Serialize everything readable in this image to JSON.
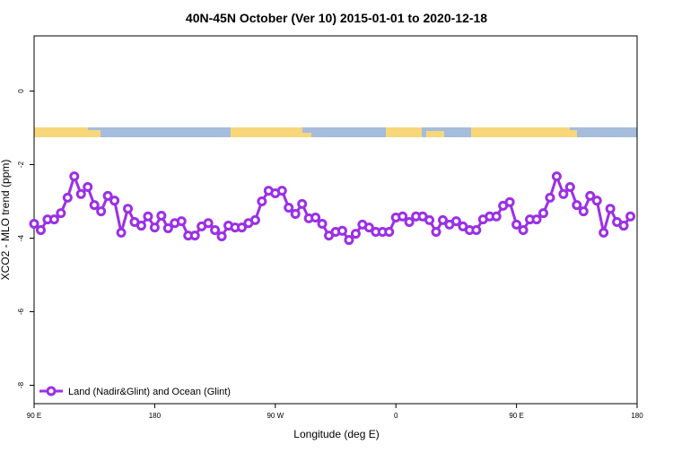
{
  "chart_data": {
    "type": "line",
    "title": "40N-45N October (Ver 10)   2015-01-01 to 2020-12-18",
    "x_label": "Longitude (deg E)",
    "y_label": "XCO2 - MLO trend (ppm)",
    "xlim": [
      90,
      540
    ],
    "ylim": [
      -8.5,
      1.5
    ],
    "xticks": [
      {
        "value": 90,
        "label": "90 E"
      },
      180,
      {
        "value": 270,
        "label": "90 W"
      },
      {
        "value": 360,
        "label": "0"
      },
      {
        "value": 450,
        "label": "90 E"
      },
      {
        "value": 540,
        "label": "180"
      }
    ],
    "yticks": [
      0,
      -2,
      -4,
      -6,
      -8
    ],
    "legend": "bottom-left",
    "x": [
      90,
      95,
      100,
      105,
      110,
      115,
      120,
      125,
      130,
      135,
      140,
      145,
      150,
      155,
      160,
      165,
      170,
      175,
      180,
      185,
      190,
      195,
      200,
      205,
      210,
      215,
      220,
      225,
      230,
      235,
      240,
      245,
      250,
      255,
      260,
      265,
      270,
      275,
      280,
      285,
      290,
      295,
      300,
      305,
      310,
      315,
      320,
      325,
      330,
      335,
      340,
      345,
      350,
      355,
      360,
      365,
      370,
      375,
      380,
      385,
      390,
      395,
      400,
      405,
      410,
      415,
      420,
      425,
      430,
      435,
      440,
      445,
      450,
      455,
      460,
      465,
      470,
      475,
      480,
      485,
      490,
      495,
      500,
      505,
      510,
      515,
      520,
      525,
      530,
      535
    ],
    "series": [
      {
        "name": "Land (Nadir&Glint) and Ocean (Glint)",
        "color": "#9b30e6",
        "values": [
          -3.61,
          -3.78,
          -3.49,
          -3.49,
          -3.32,
          -2.9,
          -2.32,
          -2.8,
          -2.61,
          -3.1,
          -3.27,
          -2.85,
          -2.98,
          -3.85,
          -3.2,
          -3.56,
          -3.66,
          -3.41,
          -3.71,
          -3.39,
          -3.73,
          -3.59,
          -3.54,
          -3.93,
          -3.93,
          -3.68,
          -3.59,
          -3.78,
          -3.95,
          -3.66,
          -3.71,
          -3.71,
          -3.59,
          -3.51,
          -3.0,
          -2.71,
          -2.78,
          -2.71,
          -3.17,
          -3.34,
          -3.07,
          -3.46,
          -3.44,
          -3.61,
          -3.93,
          -3.83,
          -3.8,
          -4.05,
          -3.88,
          -3.63,
          -3.71,
          -3.83,
          -3.83,
          -3.83,
          -3.44,
          -3.41,
          -3.56,
          -3.41,
          -3.41,
          -3.51,
          -3.83,
          -3.51,
          -3.63,
          -3.54,
          -3.68,
          -3.78,
          -3.78,
          -3.49,
          -3.41,
          -3.41,
          -3.12,
          -3.02,
          -3.63,
          -3.78,
          -3.49,
          -3.49,
          -3.32,
          -2.9,
          -2.32,
          -2.8,
          -2.61,
          -3.1,
          -3.27,
          -2.85,
          -2.98,
          -3.85,
          -3.2,
          -3.56,
          -3.66,
          -3.41
        ]
      }
    ]
  }
}
